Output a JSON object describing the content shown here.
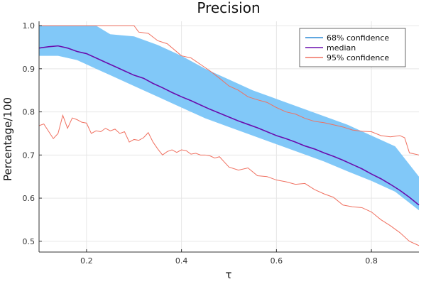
{
  "chart_data": {
    "type": "line",
    "title": "Precision",
    "xlabel": "τ",
    "ylabel": "Percentage/100",
    "xlim": [
      0.1,
      0.9
    ],
    "ylim": [
      0.475,
      1.01
    ],
    "xticks": [
      0.2,
      0.4,
      0.6,
      0.8
    ],
    "yticks": [
      0.5,
      0.6,
      0.7,
      0.8,
      0.9,
      1.0
    ],
    "xtick_labels": [
      "0.2",
      "0.4",
      "0.6",
      "0.8"
    ],
    "ytick_labels": [
      "0.5",
      "0.6",
      "0.7",
      "0.8",
      "0.9",
      "1.0"
    ],
    "grid": true,
    "legend_position": "top-right",
    "colors": {
      "band": "#81C8F8",
      "band_legend": "#2B8AD6",
      "median": "#6A0DAD",
      "ci95": "#F07060"
    },
    "series": [
      {
        "name": "68% confidence",
        "kind": "band",
        "x": [
          0.1,
          0.14,
          0.18,
          0.22,
          0.25,
          0.3,
          0.35,
          0.4,
          0.45,
          0.5,
          0.55,
          0.6,
          0.65,
          0.7,
          0.75,
          0.8,
          0.85,
          0.9
        ],
        "lower": [
          0.93,
          0.93,
          0.92,
          0.9,
          0.885,
          0.86,
          0.835,
          0.81,
          0.785,
          0.765,
          0.745,
          0.725,
          0.705,
          0.685,
          0.662,
          0.64,
          0.615,
          0.572
        ],
        "upper": [
          1.0,
          1.0,
          1.0,
          1.0,
          0.98,
          0.975,
          0.955,
          0.93,
          0.9,
          0.875,
          0.85,
          0.83,
          0.81,
          0.79,
          0.77,
          0.745,
          0.72,
          0.65
        ]
      },
      {
        "name": "median",
        "kind": "line",
        "x": [
          0.1,
          0.12,
          0.14,
          0.16,
          0.18,
          0.2,
          0.22,
          0.24,
          0.26,
          0.28,
          0.3,
          0.32,
          0.34,
          0.36,
          0.38,
          0.4,
          0.42,
          0.44,
          0.46,
          0.48,
          0.5,
          0.52,
          0.54,
          0.56,
          0.58,
          0.6,
          0.62,
          0.64,
          0.66,
          0.68,
          0.7,
          0.72,
          0.74,
          0.76,
          0.78,
          0.8,
          0.82,
          0.84,
          0.86,
          0.88,
          0.9
        ],
        "y": [
          0.948,
          0.951,
          0.953,
          0.948,
          0.94,
          0.935,
          0.925,
          0.915,
          0.905,
          0.895,
          0.885,
          0.878,
          0.866,
          0.856,
          0.845,
          0.835,
          0.826,
          0.816,
          0.806,
          0.797,
          0.788,
          0.779,
          0.771,
          0.763,
          0.754,
          0.745,
          0.738,
          0.73,
          0.721,
          0.714,
          0.705,
          0.697,
          0.688,
          0.678,
          0.668,
          0.656,
          0.645,
          0.632,
          0.618,
          0.602,
          0.584
        ]
      },
      {
        "name": "95% confidence",
        "kind": "line",
        "upper": {
          "x": [
            0.1,
            0.15,
            0.2,
            0.25,
            0.28,
            0.3,
            0.31,
            0.33,
            0.35,
            0.37,
            0.4,
            0.42,
            0.44,
            0.46,
            0.48,
            0.5,
            0.52,
            0.54,
            0.56,
            0.58,
            0.6,
            0.62,
            0.64,
            0.66,
            0.68,
            0.7,
            0.72,
            0.74,
            0.76,
            0.78,
            0.8,
            0.82,
            0.84,
            0.86,
            0.87,
            0.88,
            0.9
          ],
          "y": [
            1.0,
            1.0,
            1.0,
            1.0,
            1.0,
            1.0,
            0.985,
            0.982,
            0.965,
            0.958,
            0.93,
            0.925,
            0.91,
            0.895,
            0.878,
            0.86,
            0.85,
            0.835,
            0.828,
            0.822,
            0.81,
            0.8,
            0.795,
            0.785,
            0.778,
            0.775,
            0.77,
            0.765,
            0.758,
            0.755,
            0.754,
            0.745,
            0.742,
            0.745,
            0.74,
            0.705,
            0.7
          ]
        },
        "lower": {
          "x": [
            0.1,
            0.11,
            0.12,
            0.13,
            0.14,
            0.15,
            0.16,
            0.17,
            0.18,
            0.19,
            0.2,
            0.21,
            0.22,
            0.23,
            0.24,
            0.25,
            0.26,
            0.27,
            0.28,
            0.29,
            0.3,
            0.31,
            0.32,
            0.33,
            0.34,
            0.35,
            0.36,
            0.37,
            0.38,
            0.39,
            0.4,
            0.41,
            0.42,
            0.43,
            0.44,
            0.45,
            0.46,
            0.47,
            0.48,
            0.49,
            0.5,
            0.52,
            0.54,
            0.56,
            0.58,
            0.6,
            0.62,
            0.64,
            0.66,
            0.68,
            0.7,
            0.72,
            0.74,
            0.76,
            0.78,
            0.8,
            0.82,
            0.84,
            0.86,
            0.88,
            0.9
          ],
          "y": [
            0.768,
            0.772,
            0.755,
            0.738,
            0.75,
            0.792,
            0.762,
            0.786,
            0.782,
            0.776,
            0.774,
            0.75,
            0.756,
            0.754,
            0.762,
            0.756,
            0.76,
            0.75,
            0.754,
            0.73,
            0.736,
            0.734,
            0.74,
            0.752,
            0.73,
            0.714,
            0.7,
            0.708,
            0.712,
            0.706,
            0.712,
            0.71,
            0.702,
            0.704,
            0.7,
            0.7,
            0.698,
            0.693,
            0.696,
            0.684,
            0.672,
            0.665,
            0.67,
            0.652,
            0.65,
            0.642,
            0.638,
            0.632,
            0.634,
            0.62,
            0.61,
            0.602,
            0.584,
            0.58,
            0.578,
            0.568,
            0.55,
            0.536,
            0.52,
            0.5,
            0.49
          ]
        }
      }
    ]
  }
}
